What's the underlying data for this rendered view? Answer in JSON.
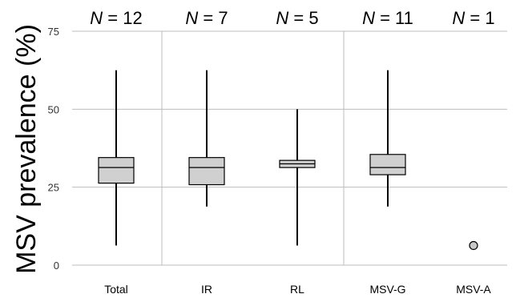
{
  "chart_data": {
    "type": "boxplot",
    "title": "",
    "xlabel": "",
    "ylabel": "MSV prevalence (%)",
    "ylim": [
      0,
      75
    ],
    "yticks": [
      0,
      25,
      50,
      75
    ],
    "grid": true,
    "n_symbol": "N",
    "categories": [
      "Total",
      "IR",
      "RL",
      "MSV-G",
      "MSV-A"
    ],
    "n_labels": [
      "= 12",
      "= 7",
      "= 5",
      "= 11",
      "= 1"
    ],
    "boxes": [
      {
        "category": "Total",
        "min": 6.3,
        "q1": 26.3,
        "median": 31.3,
        "q3": 34.5,
        "max": 62.5
      },
      {
        "category": "IR",
        "min": 18.8,
        "q1": 25.8,
        "median": 31.3,
        "q3": 34.5,
        "max": 62.5
      },
      {
        "category": "RL",
        "min": 6.3,
        "q1": 31.3,
        "median": 32.5,
        "q3": 33.6,
        "max": 50.0
      },
      {
        "category": "MSV-G",
        "min": 18.8,
        "q1": 29.0,
        "median": 31.3,
        "q3": 35.5,
        "max": 62.5
      },
      {
        "category": "MSV-A",
        "point": 6.3
      }
    ],
    "colors": {
      "box_fill": "#d0d0d0",
      "box_stroke": "#000000",
      "grid": "#bdbdbd",
      "point_fill": "#c8c8c8"
    }
  }
}
